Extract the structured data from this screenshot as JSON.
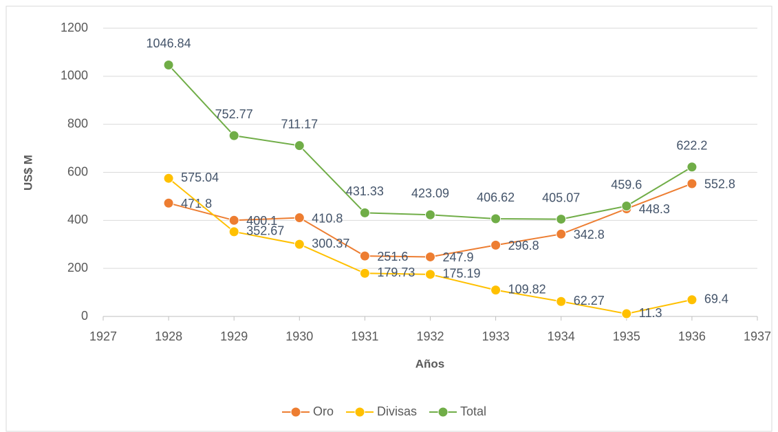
{
  "chart_data": {
    "type": "line",
    "x": [
      1928,
      1929,
      1930,
      1931,
      1932,
      1933,
      1934,
      1935,
      1936
    ],
    "series": [
      {
        "name": "Oro",
        "color": "#ed7d31",
        "values": [
          471.8,
          400.1,
          410.8,
          251.6,
          247.9,
          296.8,
          342.8,
          448.3,
          552.8
        ]
      },
      {
        "name": "Divisas",
        "color": "#ffc000",
        "values": [
          575.04,
          352.67,
          300.37,
          179.73,
          175.19,
          109.82,
          62.27,
          11.3,
          69.4
        ]
      },
      {
        "name": "Total",
        "color": "#70ad47",
        "values": [
          1046.84,
          752.77,
          711.17,
          431.33,
          423.09,
          406.62,
          405.07,
          459.6,
          622.2
        ]
      }
    ],
    "xlim": [
      1927,
      1937
    ],
    "xticks": [
      1927,
      1928,
      1929,
      1930,
      1931,
      1932,
      1933,
      1934,
      1935,
      1936,
      1937
    ],
    "ylim": [
      0,
      1200
    ],
    "yticks": [
      0,
      200,
      400,
      600,
      800,
      1000,
      1200
    ],
    "y_label": "US$ M",
    "x_label": "Años",
    "grid": true,
    "legend": "bottom"
  }
}
